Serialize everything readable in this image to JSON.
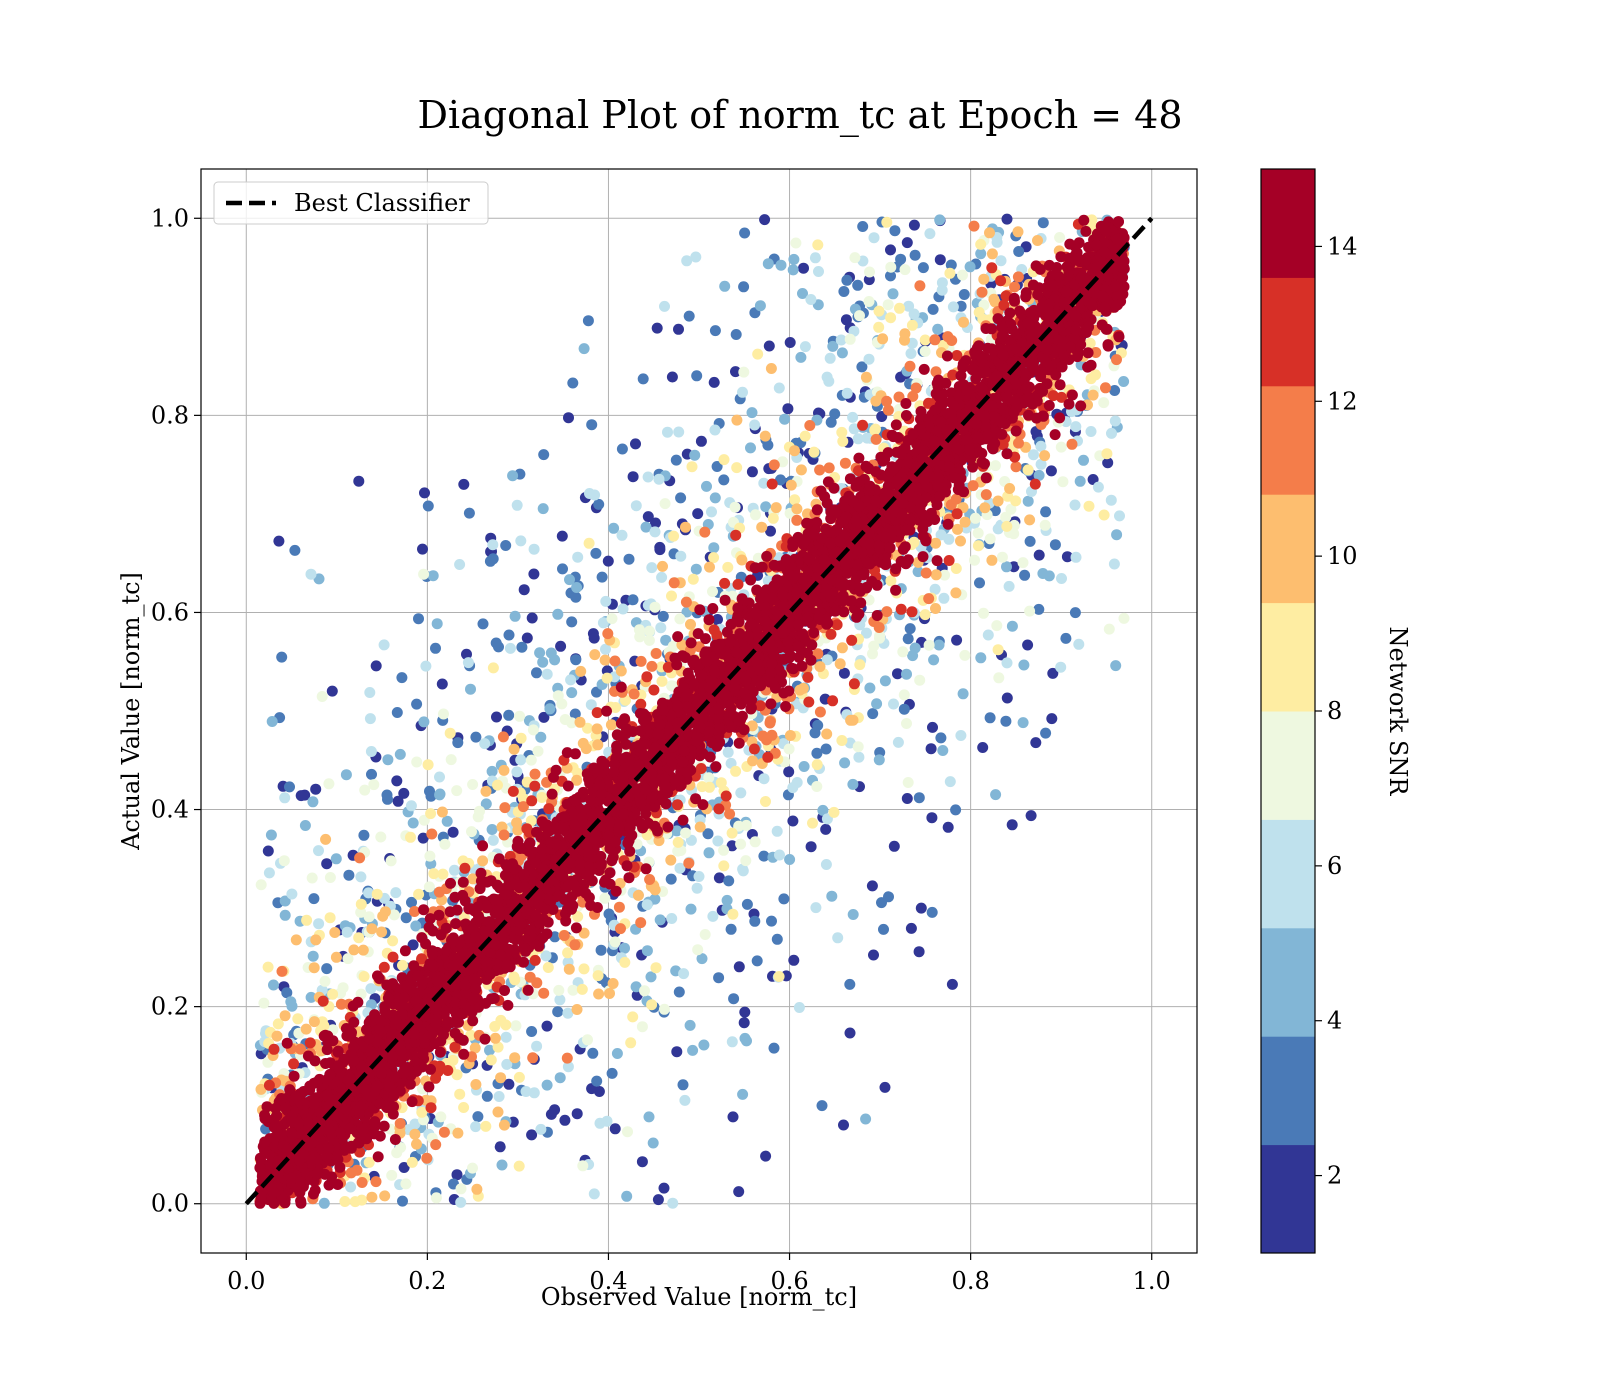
{
  "chart_data": {
    "type": "scatter",
    "title": "Diagonal Plot of norm_tc at Epoch = 48",
    "xlabel": "Observed Value [norm_tc]",
    "ylabel": "Actual Value [norm_tc]",
    "xlim": [
      -0.05,
      1.05
    ],
    "ylim": [
      -0.05,
      1.05
    ],
    "xticks": [
      "0.0",
      "0.2",
      "0.4",
      "0.6",
      "0.8",
      "1.0"
    ],
    "yticks": [
      "0.0",
      "0.2",
      "0.4",
      "0.6",
      "0.8",
      "1.0"
    ],
    "grid": true,
    "legend": {
      "placement": "upper-left",
      "entries": [
        "Best Classifier"
      ]
    },
    "reference_line": {
      "name": "Best Classifier",
      "x": [
        0.0,
        1.0
      ],
      "y": [
        0.0,
        1.0
      ],
      "style": "dashed",
      "color": "#000000"
    },
    "colorbar": {
      "label": "Network SNR",
      "cmap": "RdYlBu_r",
      "range": [
        1,
        15
      ],
      "ticks": [
        "2",
        "4",
        "6",
        "8",
        "10",
        "12",
        "14"
      ],
      "levels": [
        1,
        2.4,
        3.8,
        5.2,
        6.6,
        8.0,
        9.4,
        10.8,
        12.2,
        13.6,
        15.0
      ],
      "colors": [
        "#313695",
        "#4a7ab7",
        "#82b6d6",
        "#bfe1ed",
        "#eef8e0",
        "#feeda2",
        "#fdbe6f",
        "#f47d4a",
        "#d73027",
        "#a50026"
      ]
    },
    "series": [
      {
        "name": "",
        "description_of_distribution": "dense scatter around y = x; high SNR (~14) points concentrate in a band of width ~0.1 around the diagonal, lower SNR points spread up to ~0.6 off-diagonal",
        "x_range": [
          0.0,
          0.97
        ],
        "y_range": [
          0.0,
          1.0
        ],
        "c_range": [
          1,
          15
        ]
      }
    ]
  }
}
